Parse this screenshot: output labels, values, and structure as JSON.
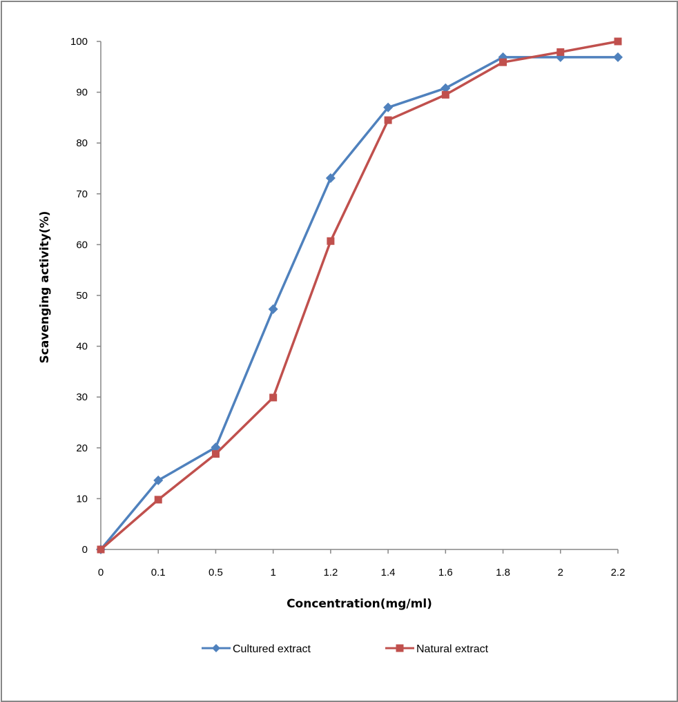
{
  "chart_data": {
    "type": "line",
    "title": "",
    "xlabel": "Concentration(mg/ml)",
    "ylabel": "Scavenging activity(%)",
    "categories": [
      "0",
      "0.1",
      "0.5",
      "1",
      "1.2",
      "1.4",
      "1.6",
      "1.8",
      "2",
      "2.2"
    ],
    "ylim": [
      0,
      100
    ],
    "yticks": [
      "0",
      "10",
      "20",
      "30",
      "40",
      "50",
      "60",
      "70",
      "80",
      "90",
      "100"
    ],
    "grid": false,
    "legend_position": "bottom",
    "series": [
      {
        "name": "Cultured extract",
        "color": "#4F81BD",
        "marker": "diamond",
        "values": [
          0,
          13.6,
          20.1,
          47.3,
          73.1,
          87.0,
          90.8,
          96.9,
          96.9,
          96.9
        ]
      },
      {
        "name": "Natural extract",
        "color": "#C0504D",
        "marker": "square",
        "values": [
          0,
          9.8,
          18.8,
          29.9,
          60.7,
          84.5,
          89.5,
          95.9,
          97.9,
          100
        ]
      }
    ]
  }
}
